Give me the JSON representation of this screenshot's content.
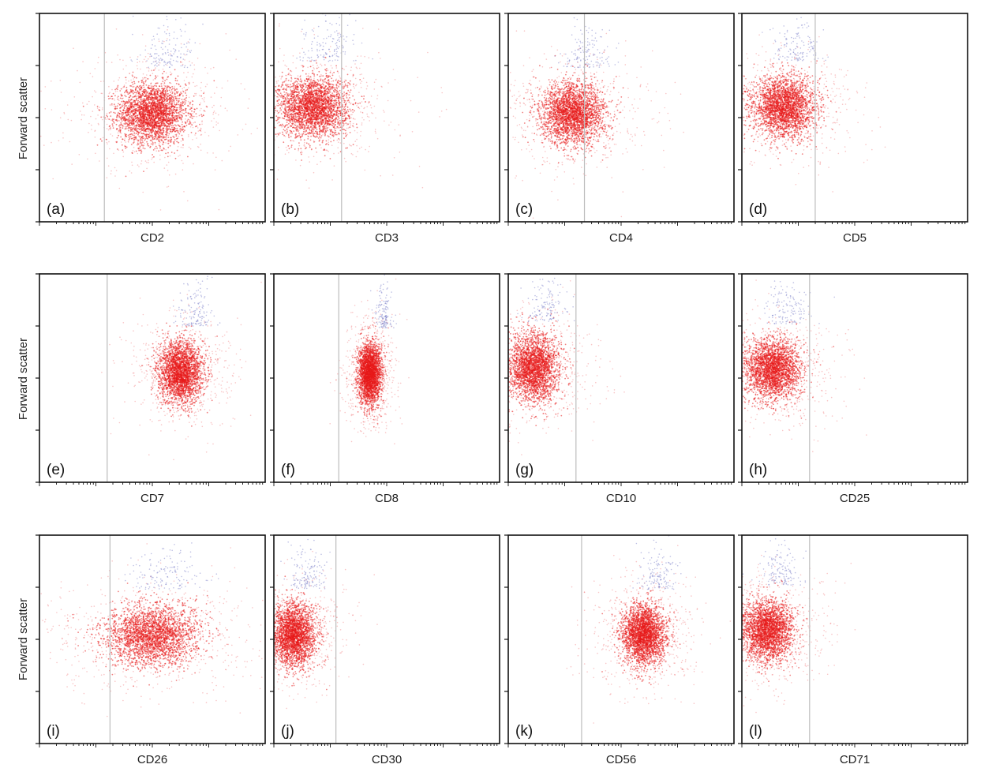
{
  "figure": {
    "y_axis_label": "Forward scatter",
    "colors": {
      "events": "#e8191a",
      "high_events": "#6f74c4",
      "gate": "#bdbdbd",
      "frame": "#111111"
    }
  },
  "chart_data": [
    {
      "type": "scatter",
      "panel_label": "(a)",
      "xlabel": "CD2",
      "ylabel": "Forward scatter",
      "x_scale": "log",
      "xlim": [
        0,
        4
      ],
      "ylim": [
        0,
        1
      ],
      "gate_x": 1.15,
      "population": {
        "center": [
          2.0,
          0.52
        ],
        "spread": [
          0.55,
          0.09
        ]
      }
    },
    {
      "type": "scatter",
      "panel_label": "(b)",
      "xlabel": "CD3",
      "ylabel": "Forward scatter",
      "x_scale": "log",
      "xlim": [
        0,
        4
      ],
      "ylim": [
        0,
        1
      ],
      "gate_x": 1.2,
      "population": {
        "center": [
          0.7,
          0.55
        ],
        "spread": [
          0.55,
          0.09
        ]
      }
    },
    {
      "type": "scatter",
      "panel_label": "(c)",
      "xlabel": "CD4",
      "ylabel": "Forward scatter",
      "x_scale": "log",
      "xlim": [
        0,
        4
      ],
      "ylim": [
        0,
        1
      ],
      "gate_x": 1.35,
      "population": {
        "center": [
          1.15,
          0.52
        ],
        "spread": [
          0.5,
          0.09
        ]
      }
    },
    {
      "type": "scatter",
      "panel_label": "(d)",
      "xlabel": "CD5",
      "ylabel": "Forward scatter",
      "x_scale": "log",
      "xlim": [
        0,
        4
      ],
      "ylim": [
        0,
        1
      ],
      "gate_x": 1.3,
      "population": {
        "center": [
          0.75,
          0.55
        ],
        "spread": [
          0.5,
          0.09
        ]
      }
    },
    {
      "type": "scatter",
      "panel_label": "(e)",
      "xlabel": "CD7",
      "ylabel": "Forward scatter",
      "x_scale": "log",
      "xlim": [
        0,
        4
      ],
      "ylim": [
        0,
        1
      ],
      "gate_x": 1.2,
      "population": {
        "center": [
          2.5,
          0.53
        ],
        "spread": [
          0.35,
          0.09
        ]
      }
    },
    {
      "type": "scatter",
      "panel_label": "(f)",
      "xlabel": "CD8",
      "ylabel": "Forward scatter",
      "x_scale": "log",
      "xlim": [
        0,
        4
      ],
      "ylim": [
        0,
        1
      ],
      "gate_x": 1.15,
      "population": {
        "center": [
          1.7,
          0.52
        ],
        "spread": [
          0.18,
          0.09
        ]
      }
    },
    {
      "type": "scatter",
      "panel_label": "(g)",
      "xlabel": "CD10",
      "ylabel": "Forward scatter",
      "x_scale": "log",
      "xlim": [
        0,
        4
      ],
      "ylim": [
        0,
        1
      ],
      "gate_x": 1.2,
      "population": {
        "center": [
          0.45,
          0.55
        ],
        "spread": [
          0.4,
          0.1
        ]
      }
    },
    {
      "type": "scatter",
      "panel_label": "(h)",
      "xlabel": "CD25",
      "ylabel": "Forward scatter",
      "x_scale": "log",
      "xlim": [
        0,
        4
      ],
      "ylim": [
        0,
        1
      ],
      "gate_x": 1.2,
      "population": {
        "center": [
          0.55,
          0.54
        ],
        "spread": [
          0.45,
          0.09
        ]
      }
    },
    {
      "type": "scatter",
      "panel_label": "(i)",
      "xlabel": "CD26",
      "ylabel": "Forward scatter",
      "x_scale": "log",
      "xlim": [
        0,
        4
      ],
      "ylim": [
        0,
        1
      ],
      "gate_x": 1.25,
      "population": {
        "center": [
          2.0,
          0.52
        ],
        "spread": [
          0.75,
          0.09
        ]
      }
    },
    {
      "type": "scatter",
      "panel_label": "(j)",
      "xlabel": "CD30",
      "ylabel": "Forward scatter",
      "x_scale": "log",
      "xlim": [
        0,
        4
      ],
      "ylim": [
        0,
        1
      ],
      "gate_x": 1.1,
      "population": {
        "center": [
          0.35,
          0.52
        ],
        "spread": [
          0.35,
          0.09
        ]
      }
    },
    {
      "type": "scatter",
      "panel_label": "(k)",
      "xlabel": "CD56",
      "ylabel": "Forward scatter",
      "x_scale": "log",
      "xlim": [
        0,
        4
      ],
      "ylim": [
        0,
        1
      ],
      "gate_x": 1.3,
      "population": {
        "center": [
          2.4,
          0.52
        ],
        "spread": [
          0.35,
          0.09
        ]
      }
    },
    {
      "type": "scatter",
      "panel_label": "(l)",
      "xlabel": "CD71",
      "ylabel": "Forward scatter",
      "x_scale": "log",
      "xlim": [
        0,
        4
      ],
      "ylim": [
        0,
        1
      ],
      "gate_x": 1.2,
      "population": {
        "center": [
          0.45,
          0.54
        ],
        "spread": [
          0.4,
          0.09
        ]
      }
    }
  ]
}
